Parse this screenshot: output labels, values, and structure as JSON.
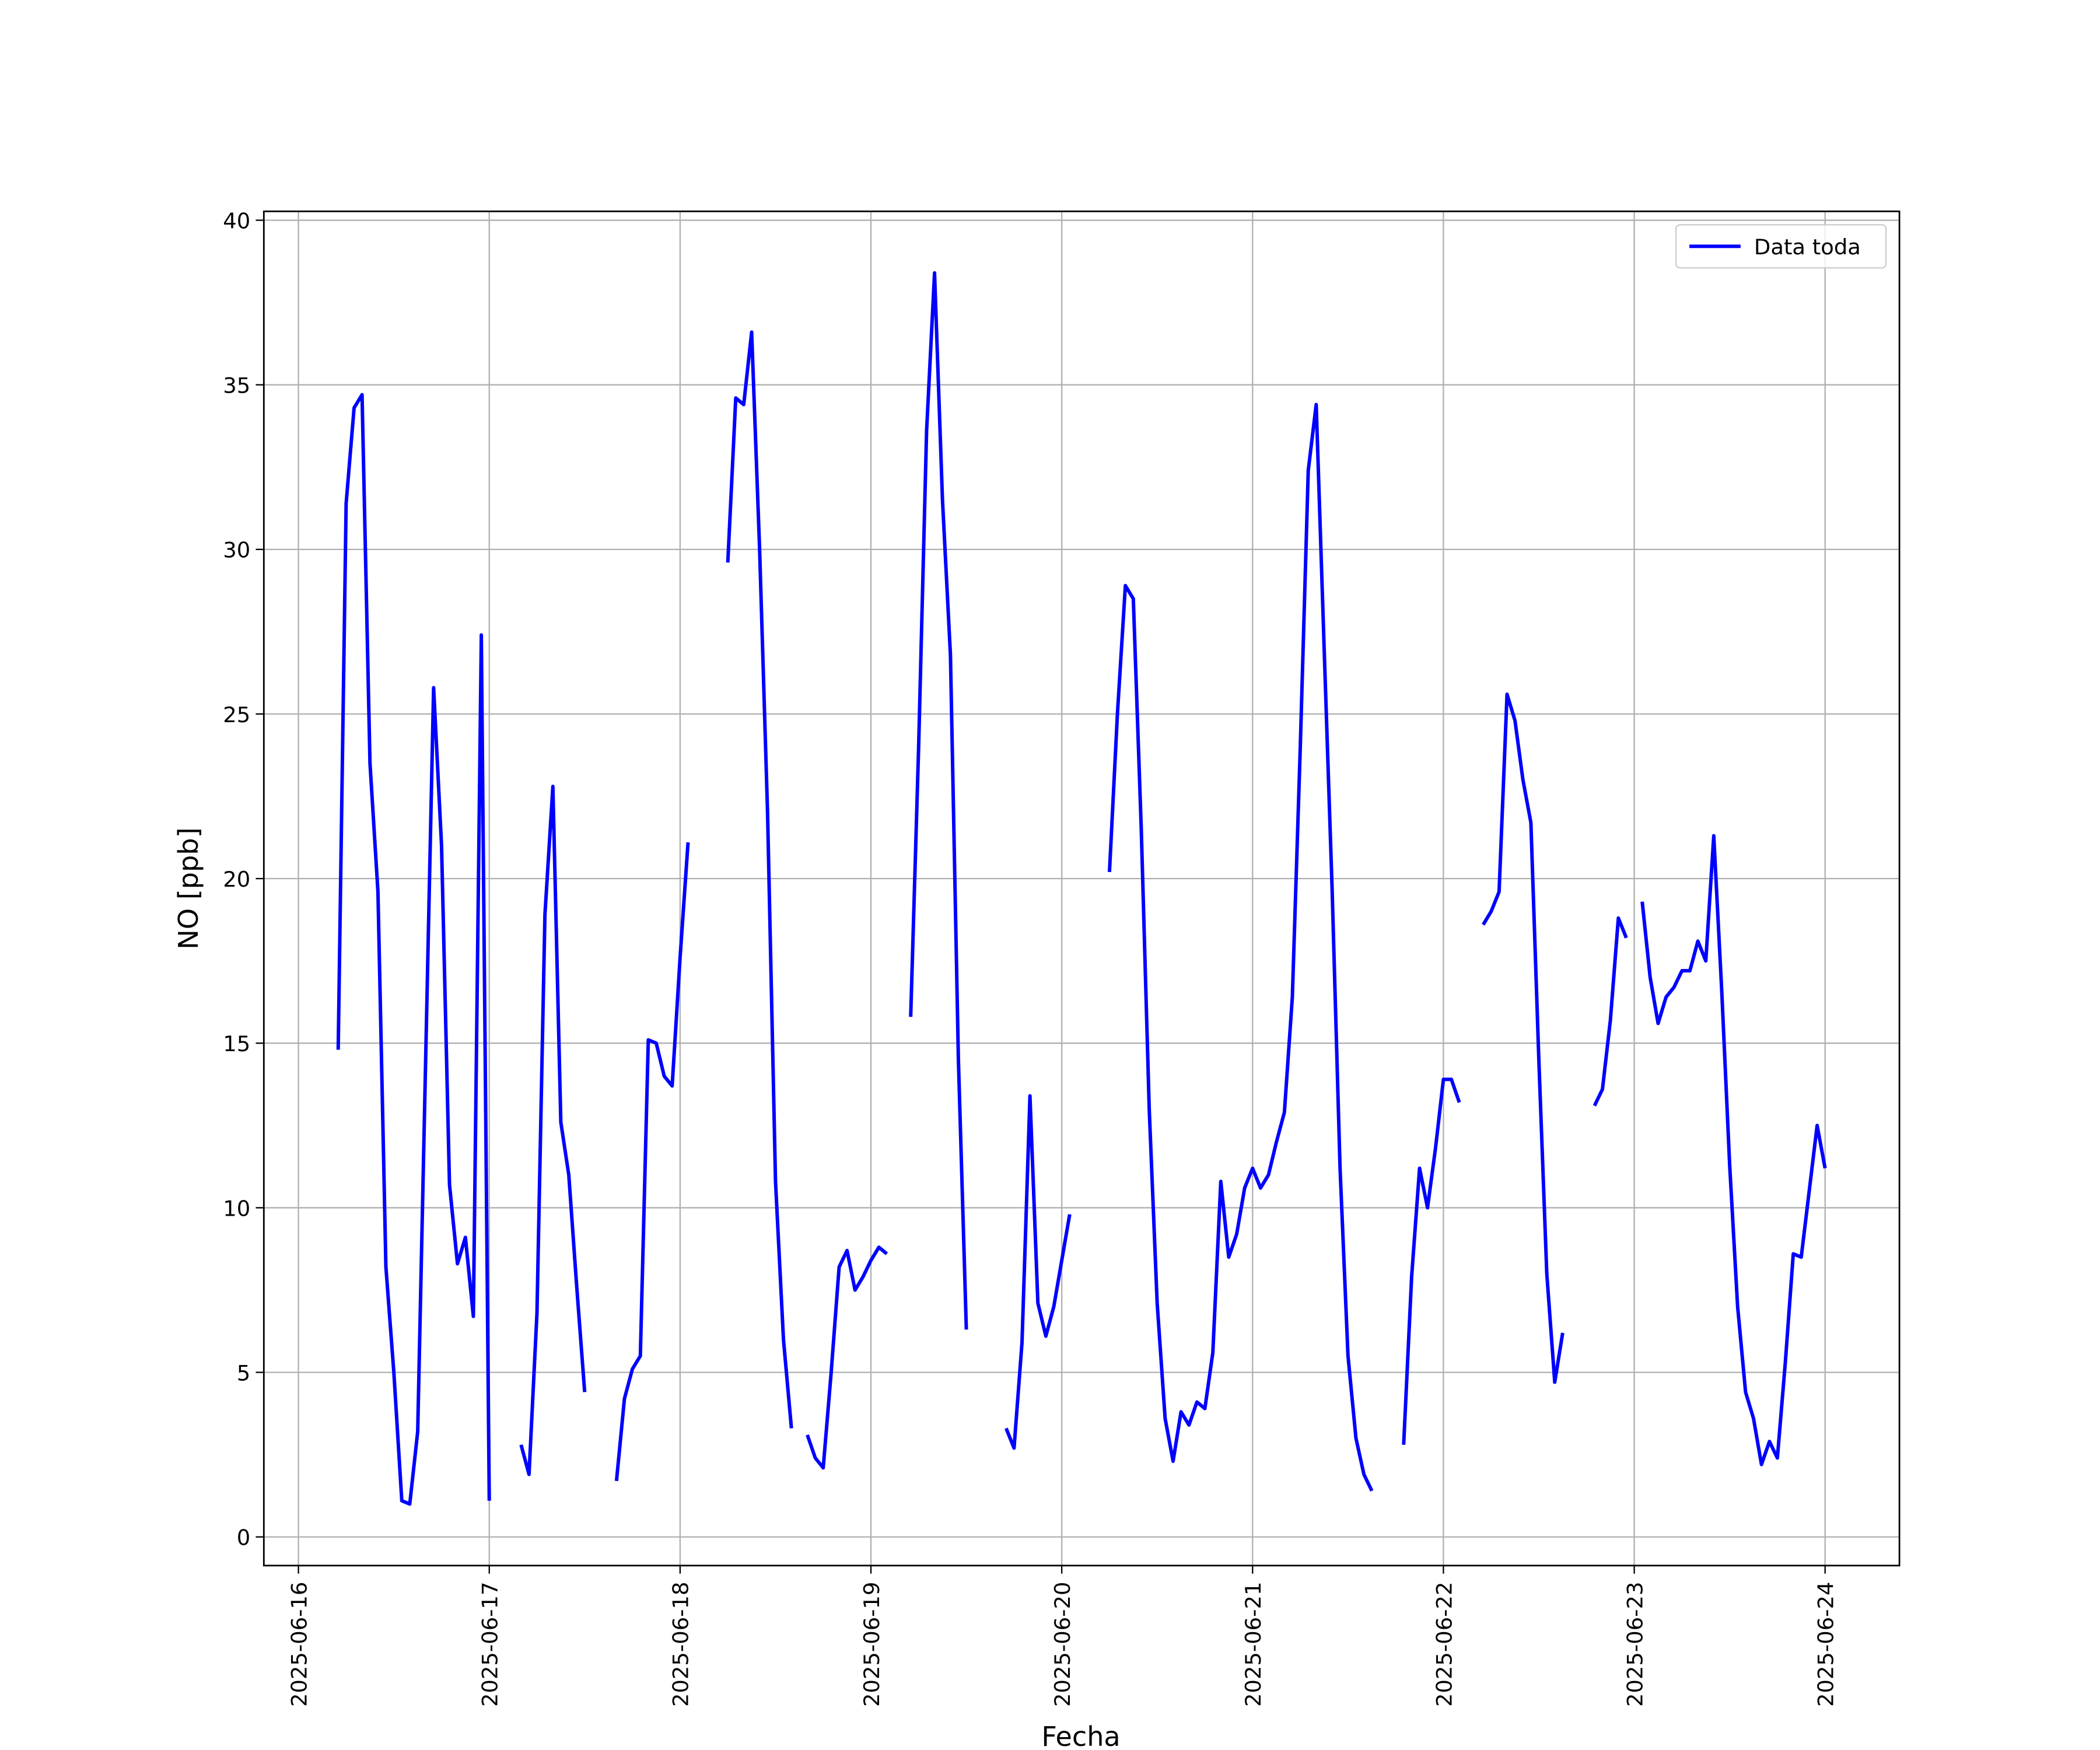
{
  "chart_data": {
    "type": "line",
    "xlabel": "Fecha",
    "ylabel": "NO [ppb]",
    "xlim": [
      "2025-06-15 19:39",
      "2025-06-24 09:21"
    ],
    "xticks": [
      "2025-06-16",
      "2025-06-17",
      "2025-06-18",
      "2025-06-19",
      "2025-06-20",
      "2025-06-21",
      "2025-06-22",
      "2025-06-23",
      "2025-06-24"
    ],
    "ylim": [
      -0.87,
      40.27
    ],
    "yticks": [
      0,
      5,
      10,
      15,
      20,
      25,
      30,
      35,
      40
    ],
    "grid": true,
    "legend": "upper right",
    "x": [
      "2025-06-16 05:00",
      "2025-06-16 06:00",
      "2025-06-16 07:00",
      "2025-06-16 08:00",
      "2025-06-16 09:00",
      "2025-06-16 10:00",
      "2025-06-16 11:00",
      "2025-06-16 12:00",
      "2025-06-16 13:00",
      "2025-06-16 14:00",
      "2025-06-16 15:00",
      "2025-06-16 16:00",
      "2025-06-16 17:00",
      "2025-06-16 18:00",
      "2025-06-16 19:00",
      "2025-06-16 20:00",
      "2025-06-16 21:00",
      "2025-06-16 22:00",
      "2025-06-16 23:00",
      "2025-06-17 00:00",
      "2025-06-17 01:00",
      "2025-06-17 04:00",
      "2025-06-17 05:00",
      "2025-06-17 06:00",
      "2025-06-17 07:00",
      "2025-06-17 08:00",
      "2025-06-17 09:00",
      "2025-06-17 10:00",
      "2025-06-17 11:00",
      "2025-06-17 12:00",
      "2025-06-17 13:00",
      "2025-06-17 16:00",
      "2025-06-17 17:00",
      "2025-06-17 18:00",
      "2025-06-17 19:00",
      "2025-06-17 20:00",
      "2025-06-17 21:00",
      "2025-06-17 22:00",
      "2025-06-17 23:00",
      "2025-06-18 00:00",
      "2025-06-18 01:00",
      "2025-06-18 02:00",
      "2025-06-18 06:00",
      "2025-06-18 07:00",
      "2025-06-18 08:00",
      "2025-06-18 09:00",
      "2025-06-18 10:00",
      "2025-06-18 11:00",
      "2025-06-18 12:00",
      "2025-06-18 13:00",
      "2025-06-18 14:00",
      "2025-06-18 15:00",
      "2025-06-18 16:00",
      "2025-06-18 17:00",
      "2025-06-18 18:00",
      "2025-06-18 19:00",
      "2025-06-18 20:00",
      "2025-06-18 21:00",
      "2025-06-18 22:00",
      "2025-06-18 23:00",
      "2025-06-19 00:00",
      "2025-06-19 01:00",
      "2025-06-19 02:00",
      "2025-06-19 03:00",
      "2025-06-19 05:00",
      "2025-06-19 06:00",
      "2025-06-19 07:00",
      "2025-06-19 08:00",
      "2025-06-19 09:00",
      "2025-06-19 10:00",
      "2025-06-19 11:00",
      "2025-06-19 12:00",
      "2025-06-19 13:00",
      "2025-06-19 17:00",
      "2025-06-19 18:00",
      "2025-06-19 19:00",
      "2025-06-19 20:00",
      "2025-06-19 21:00",
      "2025-06-19 22:00",
      "2025-06-19 23:00",
      "2025-06-20 00:00",
      "2025-06-20 01:00",
      "2025-06-20 02:00",
      "2025-06-20 06:00",
      "2025-06-20 07:00",
      "2025-06-20 08:00",
      "2025-06-20 09:00",
      "2025-06-20 10:00",
      "2025-06-20 11:00",
      "2025-06-20 12:00",
      "2025-06-20 13:00",
      "2025-06-20 14:00",
      "2025-06-20 15:00",
      "2025-06-20 16:00",
      "2025-06-20 17:00",
      "2025-06-20 18:00",
      "2025-06-20 19:00",
      "2025-06-20 20:00",
      "2025-06-20 21:00",
      "2025-06-20 22:00",
      "2025-06-20 23:00",
      "2025-06-21 00:00",
      "2025-06-21 01:00",
      "2025-06-21 02:00",
      "2025-06-21 03:00",
      "2025-06-21 04:00",
      "2025-06-21 05:00",
      "2025-06-21 06:00",
      "2025-06-21 07:00",
      "2025-06-21 08:00",
      "2025-06-21 09:00",
      "2025-06-21 10:00",
      "2025-06-21 11:00",
      "2025-06-21 12:00",
      "2025-06-21 13:00",
      "2025-06-21 14:00",
      "2025-06-21 15:00",
      "2025-06-21 16:00",
      "2025-06-21 19:00",
      "2025-06-21 20:00",
      "2025-06-21 21:00",
      "2025-06-21 22:00",
      "2025-06-21 23:00",
      "2025-06-22 00:00",
      "2025-06-22 01:00",
      "2025-06-22 02:00",
      "2025-06-22 03:00",
      "2025-06-22 05:00",
      "2025-06-22 06:00",
      "2025-06-22 07:00",
      "2025-06-22 08:00",
      "2025-06-22 09:00",
      "2025-06-22 10:00",
      "2025-06-22 11:00",
      "2025-06-22 12:00",
      "2025-06-22 13:00",
      "2025-06-22 14:00",
      "2025-06-22 15:00",
      "2025-06-22 16:00",
      "2025-06-22 19:00",
      "2025-06-22 20:00",
      "2025-06-22 21:00",
      "2025-06-22 22:00",
      "2025-06-22 23:00",
      "2025-06-23 00:00",
      "2025-06-23 01:00",
      "2025-06-23 02:00",
      "2025-06-23 03:00",
      "2025-06-23 04:00",
      "2025-06-23 05:00",
      "2025-06-23 06:00",
      "2025-06-23 07:00",
      "2025-06-23 08:00",
      "2025-06-23 09:00",
      "2025-06-23 10:00",
      "2025-06-23 11:00",
      "2025-06-23 12:00",
      "2025-06-23 13:00",
      "2025-06-23 14:00",
      "2025-06-23 15:00",
      "2025-06-23 16:00",
      "2025-06-23 17:00",
      "2025-06-23 18:00",
      "2025-06-23 19:00",
      "2025-06-23 20:00",
      "2025-06-23 21:00",
      "2025-06-23 22:00",
      "2025-06-23 23:00",
      "2025-06-24 00:00"
    ],
    "series": [
      {
        "name": "Data toda",
        "color": "#0000ff",
        "values": [
          14.8,
          31.4,
          34.3,
          34.7,
          23.5,
          19.6,
          8.2,
          5.0,
          1.1,
          1.0,
          3.2,
          14.5,
          25.8,
          21.0,
          10.7,
          8.3,
          9.1,
          6.7,
          27.4,
          1.1,
          null,
          2.8,
          1.9,
          6.8,
          18.9,
          22.8,
          12.6,
          11.0,
          7.6,
          4.4,
          null,
          1.7,
          4.2,
          5.1,
          5.5,
          15.1,
          15.0,
          14.0,
          13.7,
          17.6,
          21.1,
          null,
          29.6,
          34.6,
          34.4,
          36.6,
          30.0,
          22.0,
          10.8,
          6.0,
          3.3,
          null,
          3.1,
          2.4,
          2.1,
          5.0,
          8.2,
          8.7,
          7.5,
          7.9,
          8.4,
          8.8,
          8.6,
          null,
          15.8,
          24.0,
          33.6,
          38.4,
          31.5,
          26.8,
          14.5,
          6.3,
          null,
          3.3,
          2.7,
          5.9,
          13.4,
          7.1,
          6.1,
          7.0,
          8.4,
          9.8,
          null,
          20.2,
          25.0,
          28.9,
          28.5,
          21.5,
          13.0,
          7.1,
          3.6,
          2.3,
          3.8,
          3.4,
          4.1,
          3.9,
          5.6,
          10.8,
          8.5,
          9.2,
          10.6,
          11.2,
          10.6,
          11.0,
          12.0,
          12.9,
          16.4,
          24.0,
          32.4,
          34.4,
          27.0,
          19.7,
          11.2,
          5.5,
          3.0,
          1.9,
          1.4,
          null,
          2.8,
          7.9,
          11.2,
          10.0,
          11.8,
          13.9,
          13.9,
          13.2,
          null,
          18.6,
          19.0,
          19.6,
          25.6,
          24.8,
          23.0,
          21.7,
          14.5,
          8.0,
          4.7,
          6.2,
          null,
          13.1,
          13.6,
          15.7,
          18.8,
          18.2,
          null,
          19.3,
          17.0,
          15.6,
          16.4,
          16.7,
          17.2,
          17.2,
          18.1,
          17.5,
          21.3,
          16.6,
          11.3,
          7.0,
          4.4,
          3.6,
          2.2,
          2.9,
          2.4,
          5.3,
          8.6,
          8.5,
          10.5,
          12.5,
          11.2
        ]
      }
    ]
  }
}
